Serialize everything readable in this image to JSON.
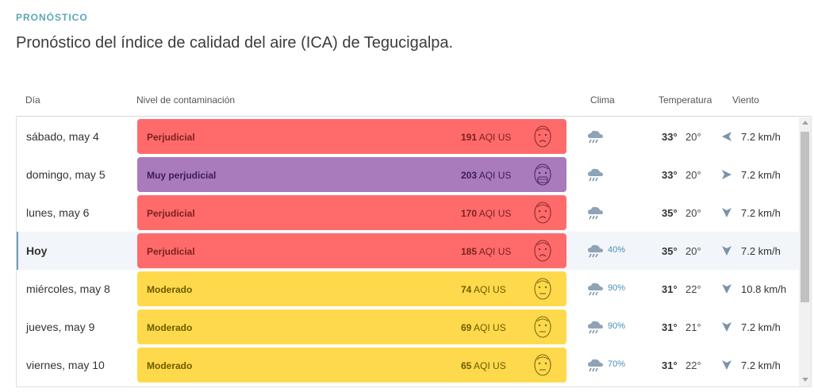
{
  "header": {
    "eyebrow": "PRONÓSTICO",
    "title": "Pronóstico del índice de calidad del aire (ICA) de Tegucigalpa."
  },
  "columns": {
    "day": "Día",
    "level": "Nivel de contaminación",
    "weather": "Clima",
    "temperature": "Temperatura",
    "wind": "Viento"
  },
  "colors": {
    "perjudicial": "#ff6b6b",
    "muy_perjudicial": "#a97abc",
    "moderado": "#fed94b",
    "text_perjudicial": "#7a1f1f",
    "text_muy": "#3d1d52",
    "text_moderado": "#6b5a00"
  },
  "rows": [
    {
      "day": "sábado, may 4",
      "level": "Perjudicial",
      "aqi": "191",
      "aqi_unit": "AQI US",
      "humidity": "",
      "tmax": "33°",
      "tmin": "20°",
      "wind": "7.2 km/h",
      "wind_dir": "west",
      "face": "unhealthy-face-icon",
      "color": "perjudicial"
    },
    {
      "day": "domingo, may 5",
      "level": "Muy perjudicial",
      "aqi": "203",
      "aqi_unit": "AQI US",
      "humidity": "",
      "tmax": "33°",
      "tmin": "20°",
      "wind": "7.2 km/h",
      "wind_dir": "east",
      "face": "very-unhealthy-face-icon",
      "color": "muy_perjudicial"
    },
    {
      "day": "lunes, may 6",
      "level": "Perjudicial",
      "aqi": "170",
      "aqi_unit": "AQI US",
      "humidity": "",
      "tmax": "35°",
      "tmin": "20°",
      "wind": "7.2 km/h",
      "wind_dir": "south",
      "face": "unhealthy-face-icon",
      "color": "perjudicial"
    },
    {
      "day": "Hoy",
      "level": "Perjudicial",
      "aqi": "185",
      "aqi_unit": "AQI US",
      "humidity": "40%",
      "tmax": "35°",
      "tmin": "20°",
      "wind": "7.2 km/h",
      "wind_dir": "south",
      "face": "unhealthy-face-icon",
      "color": "perjudicial"
    },
    {
      "day": "miércoles, may 8",
      "level": "Moderado",
      "aqi": "74",
      "aqi_unit": "AQI US",
      "humidity": "90%",
      "tmax": "31°",
      "tmin": "22°",
      "wind": "10.8 km/h",
      "wind_dir": "south",
      "face": "moderate-face-icon",
      "color": "moderado"
    },
    {
      "day": "jueves, may 9",
      "level": "Moderado",
      "aqi": "69",
      "aqi_unit": "AQI US",
      "humidity": "90%",
      "tmax": "31°",
      "tmin": "21°",
      "wind": "7.2 km/h",
      "wind_dir": "south",
      "face": "moderate-face-icon",
      "color": "moderado"
    },
    {
      "day": "viernes, may 10",
      "level": "Moderado",
      "aqi": "65",
      "aqi_unit": "AQI US",
      "humidity": "70%",
      "tmax": "31°",
      "tmin": "22°",
      "wind": "7.2 km/h",
      "wind_dir": "south",
      "face": "moderate-face-icon",
      "color": "moderado"
    }
  ]
}
